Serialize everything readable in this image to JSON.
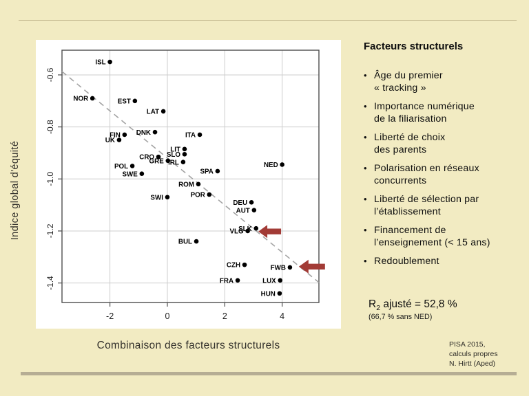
{
  "slide": {
    "background_color": "#f2ebc2",
    "top_rule_color": "#c3b88f",
    "bottom_rule_color": "#b6ad94"
  },
  "right_panel": {
    "heading": "Facteurs structurels",
    "bullets": [
      {
        "text": "Âge du premier\n« tracking »"
      },
      {
        "text": "Importance numérique\nde la filiarisation"
      },
      {
        "text": "Liberté de choix\ndes parents"
      },
      {
        "text": "Polarisation en réseaux\nconcurrents"
      },
      {
        "text": "Liberté de sélection par\nl’établissement"
      },
      {
        "text": "Financement de\nl’enseignement (< 15 ans)"
      },
      {
        "text": "Redoublement"
      }
    ],
    "r2": {
      "prefix": "R",
      "sub": "2",
      "rest": " ajusté = 52,8 %"
    },
    "r2_note": "(66,7 % sans NED)"
  },
  "credit": "PISA 2015,\ncalculs propres\nN. Hirtt (Aped)",
  "chart_data": {
    "type": "scatter",
    "xlabel": "Combinaison des facteurs structurels",
    "ylabel": "Indice global d'équité",
    "xlim": [
      -3.67,
      5.28
    ],
    "ylim": [
      -1.475,
      -0.505
    ],
    "xticks": [
      -2,
      0,
      2,
      4
    ],
    "xtick_labels": [
      "-2",
      "0",
      "2",
      "4"
    ],
    "yticks": [
      -0.6,
      -0.8,
      -1.0,
      -1.2,
      -1.4
    ],
    "ytick_labels": [
      "-0.6",
      "-0.8",
      "-1.0",
      "-1.2",
      "-1.4"
    ],
    "grid": true,
    "legend": "none",
    "points": [
      {
        "label": "ISL",
        "x": -2.0,
        "y": -0.55
      },
      {
        "label": "NOR",
        "x": -2.61,
        "y": -0.69
      },
      {
        "label": "EST",
        "x": -1.13,
        "y": -0.7
      },
      {
        "label": "LAT",
        "x": -0.14,
        "y": -0.74
      },
      {
        "label": "FIN",
        "x": -1.49,
        "y": -0.83
      },
      {
        "label": "UK",
        "x": -1.68,
        "y": -0.85
      },
      {
        "label": "DNK",
        "x": -0.43,
        "y": -0.82
      },
      {
        "label": "ITA",
        "x": 1.13,
        "y": -0.83
      },
      {
        "label": "LIT",
        "x": 0.6,
        "y": -0.885
      },
      {
        "label": "SLO",
        "x": 0.6,
        "y": -0.905
      },
      {
        "label": "CRO",
        "x": -0.31,
        "y": -0.915
      },
      {
        "label": "IRL",
        "x": 0.55,
        "y": -0.935
      },
      {
        "label": "GRE",
        "x": 0.02,
        "y": -0.93
      },
      {
        "label": "POL",
        "x": -1.22,
        "y": -0.95
      },
      {
        "label": "SWE",
        "x": -0.89,
        "y": -0.98
      },
      {
        "label": "SPA",
        "x": 1.75,
        "y": -0.97
      },
      {
        "label": "NED",
        "x": 4.0,
        "y": -0.945
      },
      {
        "label": "ROM",
        "x": 1.08,
        "y": -1.02
      },
      {
        "label": "POR",
        "x": 1.46,
        "y": -1.06
      },
      {
        "label": "SWI",
        "x": 0.0,
        "y": -1.07
      },
      {
        "label": "DEU",
        "x": 2.93,
        "y": -1.09
      },
      {
        "label": "AUT",
        "x": 3.02,
        "y": -1.12
      },
      {
        "label": "SLK",
        "x": 3.09,
        "y": -1.19
      },
      {
        "label": "VLG",
        "x": 2.8,
        "y": -1.2
      },
      {
        "label": "BUL",
        "x": 1.01,
        "y": -1.24
      },
      {
        "label": "CZH",
        "x": 2.69,
        "y": -1.33
      },
      {
        "label": "FWB",
        "x": 4.27,
        "y": -1.34
      },
      {
        "label": "FRA",
        "x": 2.45,
        "y": -1.39
      },
      {
        "label": "LUX",
        "x": 3.93,
        "y": -1.39
      },
      {
        "label": "HUN",
        "x": 3.91,
        "y": -1.44
      }
    ],
    "trend_line": {
      "x1": -3.67,
      "y1": -0.587,
      "x2": 5.28,
      "y2": -1.398,
      "style": "dashed",
      "color": "#a3a3a3"
    },
    "arrows": [
      {
        "target": "VLG",
        "x": 3.17,
        "y": -1.202,
        "len": 33,
        "head": 13,
        "hh": 9.5,
        "sh": 4.2
      },
      {
        "target": "FWB",
        "x": 4.58,
        "y": -1.337,
        "len": 38,
        "head": 14,
        "hh": 10,
        "sh": 4.2
      }
    ],
    "colors": {
      "point": "#000000",
      "arrow": "#a23b36",
      "grid": "#cccccc",
      "border": "#4d4d4d",
      "tick_text": "#222222"
    }
  }
}
